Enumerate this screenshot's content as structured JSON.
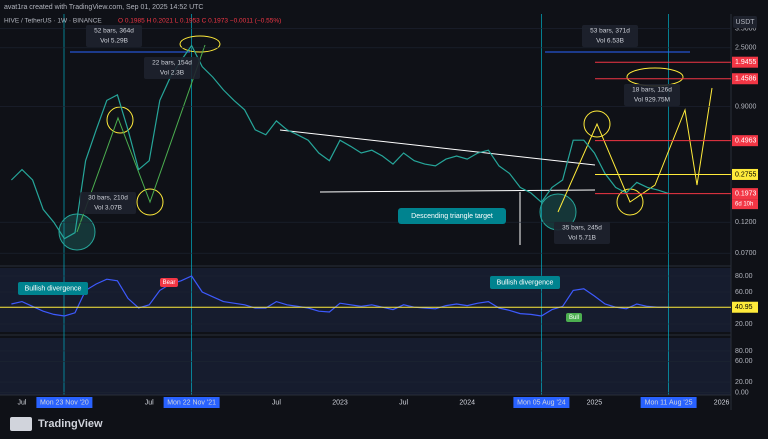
{
  "header": {
    "credit": "avat1ra created with TradingView.com, Sep 01, 2025 14:52 UTC",
    "symbol": "HIVE / TetherUS · 1W · BINANCE",
    "ohlc": "O 0.1985 H 0.2021 L 0.1953 C 0.1973 −0.0011 (−0.55%)",
    "currency": "USDT"
  },
  "footer": {
    "brand": "TradingView"
  },
  "chart_data": [
    {
      "type": "line",
      "log_scale": true,
      "categories": [
        null,
        "Jul",
        null,
        null,
        null,
        "Mon 23 Nov '20",
        null,
        null,
        null,
        null,
        null,
        null,
        null,
        "Jul",
        null,
        null,
        null,
        "Mon 22 Nov '21",
        null,
        null,
        null,
        null,
        null,
        null,
        null,
        "Jul",
        null,
        null,
        null,
        null,
        null,
        "2023",
        null,
        null,
        null,
        null,
        null,
        "Jul",
        null,
        null,
        null,
        null,
        null,
        "2024",
        null,
        null,
        null,
        null,
        null,
        null,
        "Mon 05 Aug '24",
        null,
        null,
        null,
        null,
        "2025",
        null,
        null,
        null,
        null,
        null,
        null,
        "Mon 11 Aug '25",
        null,
        null,
        null,
        null,
        "2026"
      ],
      "series": [
        {
          "name": "HIVE / TetherUS",
          "color": "#26a69a",
          "values": [
            0.25,
            0.3,
            0.25,
            0.15,
            0.12,
            0.09,
            0.1,
            0.35,
            0.6,
            1.0,
            1.1,
            0.6,
            0.3,
            0.35,
            1.0,
            1.5,
            2.0,
            2.6,
            1.8,
            1.5,
            1.2,
            1.0,
            0.85,
            0.6,
            0.55,
            0.7,
            0.6,
            0.55,
            0.5,
            0.4,
            0.35,
            0.5,
            0.45,
            0.4,
            0.42,
            0.38,
            0.33,
            0.4,
            0.35,
            0.33,
            0.32,
            0.36,
            0.38,
            0.36,
            0.4,
            0.42,
            0.32,
            0.28,
            0.22,
            0.2,
            0.17,
            0.22,
            0.25,
            0.5,
            0.5,
            0.4,
            0.28,
            0.22,
            0.2,
            0.24,
            0.22,
            0.21,
            0.1973,
            null,
            null,
            null,
            null,
            null
          ]
        }
      ],
      "ylim": [
        0.06,
        4.2
      ],
      "yticks": [
        {
          "value": 3.5,
          "label": "3.5000"
        },
        {
          "value": 2.5,
          "label": "2.5000"
        },
        {
          "value": 0.9,
          "label": "0.9000"
        },
        {
          "value": 0.12,
          "label": "0.1200"
        },
        {
          "value": 0.07,
          "label": "0.0700"
        }
      ],
      "levels": [
        {
          "value": 1.9455,
          "color": "#f23645"
        },
        {
          "value": 1.4586,
          "color": "#f23645"
        },
        {
          "value": 0.4963,
          "color": "#f23645"
        },
        {
          "value": 0.2755,
          "color": "#ffeb3b"
        },
        {
          "value": 0.1973,
          "color": "#f23645"
        }
      ],
      "countdown": "6d 10h",
      "annotations": [
        "52 bars, 364d",
        "Vol 5.29B",
        "22 bars, 154d",
        "Vol 2.3B",
        "30 bars, 210d",
        "Vol 3.07B",
        "53 bars, 371d",
        "Vol 6.53B",
        "18 bars, 126d",
        "Vol 929.75M",
        "35 bars, 245d",
        "Vol 5.71B",
        "Descending triangle target"
      ]
    },
    {
      "type": "line",
      "series": [
        {
          "name": "RSI",
          "color": "#3d5afe",
          "values": [
            45,
            48,
            42,
            36,
            32,
            30,
            34,
            62,
            70,
            76,
            74,
            52,
            40,
            44,
            62,
            70,
            74,
            80,
            60,
            54,
            48,
            46,
            44,
            40,
            40,
            48,
            44,
            42,
            40,
            36,
            35,
            46,
            44,
            42,
            44,
            41,
            38,
            44,
            41,
            40,
            39,
            43,
            45,
            43,
            46,
            48,
            40,
            37,
            33,
            32,
            30,
            38,
            42,
            62,
            64,
            55,
            45,
            41,
            39,
            45,
            42,
            41,
            40.95,
            null,
            null,
            null,
            null,
            null
          ]
        }
      ],
      "ylim": [
        10,
        90
      ],
      "yticks": [
        {
          "value": 80,
          "label": "80.00"
        },
        {
          "value": 60,
          "label": "60.00"
        },
        {
          "value": 20,
          "label": "20.00"
        }
      ],
      "level": {
        "value": 40.95,
        "label": "40.95"
      },
      "annotations": [
        "Bullish divergence",
        "Bullish divergence",
        "Bear",
        "Bull"
      ]
    },
    {
      "type": "axis",
      "ylim": [
        -5,
        105
      ],
      "yticks": [
        {
          "value": 80,
          "label": "80.00"
        },
        {
          "value": 60,
          "label": "60.00"
        },
        {
          "value": 20,
          "label": "20.00"
        },
        {
          "value": 0,
          "label": "0.00"
        }
      ]
    }
  ]
}
